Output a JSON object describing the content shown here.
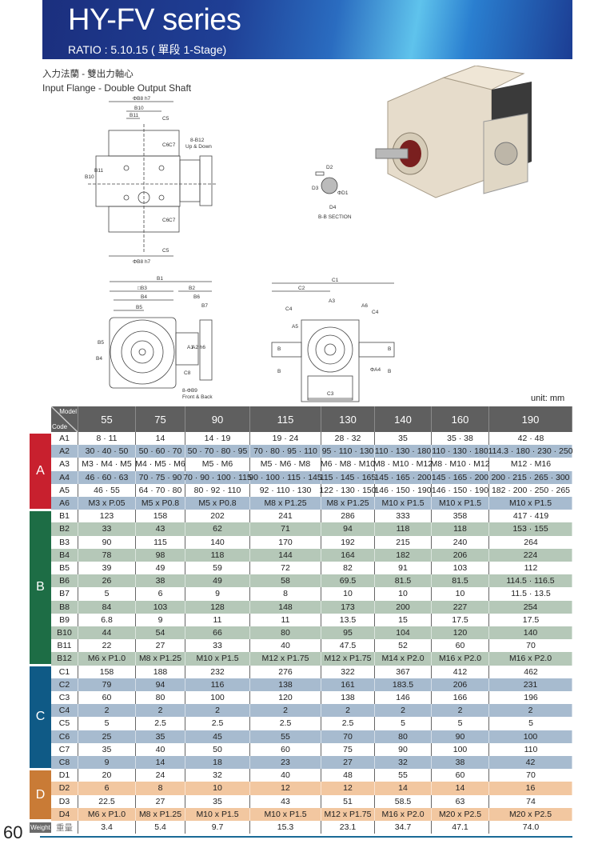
{
  "header": {
    "title": "HY-FV series",
    "ratio": "RATIO : 5.10.15 ( 單段 1-Stage)"
  },
  "subtitle_zh": "入力法蘭 - 雙出力軸心",
  "subtitle_en": "Input Flange - Double Output Shaft",
  "unit": "unit: mm",
  "page_number": "60",
  "drawings": {
    "top_view": [
      "ΦB8 h7",
      "B10",
      "B11",
      "C5",
      "C6",
      "C7",
      "8-B12",
      "Up & Down",
      "B10",
      "B11",
      "C6",
      "C7",
      "C5",
      "ΦB8 h7"
    ],
    "section": [
      "D2",
      "D3",
      "ΦD1",
      "D4",
      "B-B SECTION"
    ],
    "front_view": [
      "B1",
      "□B3",
      "B2",
      "B4",
      "B6",
      "B5",
      "B7",
      "B5",
      "B4",
      "A1",
      "A2 h6",
      "C8",
      "8-ΦB9",
      "Front & Back"
    ],
    "side_view": [
      "C1",
      "C2",
      "A3",
      "A6",
      "C4",
      "C4",
      "A5",
      "B",
      "B",
      "B",
      "B",
      "ΦA4",
      "C3"
    ]
  },
  "table": {
    "corner_model": "Model",
    "corner_code": "Code",
    "models": [
      "55",
      "75",
      "90",
      "115",
      "130",
      "140",
      "160",
      "190"
    ],
    "sections": [
      {
        "label": "A",
        "color": "#c8202e",
        "stripe": "#a7bbcf",
        "rows": [
          [
            "A1",
            "8 · 11",
            "14",
            "14 · 19",
            "19 · 24",
            "28 · 32",
            "35",
            "35 · 38",
            "42 · 48"
          ],
          [
            "A2",
            "30 · 40 · 50",
            "50 · 60 · 70",
            "50 · 70 · 80 · 95",
            "70 · 80 · 95 · 110",
            "95 · 110 · 130",
            "110 · 130 · 180",
            "110 · 130 · 180",
            "114.3 · 180 · 230 · 250"
          ],
          [
            "A3",
            "M3 · M4 · M5",
            "M4 · M5 · M6",
            "M5 · M6",
            "M5 · M6 · M8",
            "M6 · M8 · M10",
            "M8 · M10 · M12",
            "M8 · M10 · M12",
            "M12 · M16"
          ],
          [
            "A4",
            "46 · 60 · 63",
            "70 · 75 · 90",
            "70 · 90 · 100 · 115",
            "90 · 100 · 115 · 145",
            "115 · 145 · 165",
            "145 · 165 · 200",
            "145 · 165 · 200",
            "200 · 215 · 265 · 300"
          ],
          [
            "A5",
            "46 · 55",
            "64 · 70 · 80",
            "80 · 92 · 110",
            "92 · 110 · 130",
            "122 · 130 · 150",
            "146 · 150 · 190",
            "146 · 150 · 190",
            "182 · 200 · 250 · 265"
          ],
          [
            "A6",
            "M3 x P.05",
            "M5 x P0.8",
            "M5 x P0.8",
            "M8 x P1.25",
            "M8 x P1.25",
            "M10 x P1.5",
            "M10 x P1.5",
            "M10 x P1.5"
          ]
        ]
      },
      {
        "label": "B",
        "color": "#1d6d45",
        "stripe": "#b5c8b8",
        "rows": [
          [
            "B1",
            "123",
            "158",
            "202",
            "241",
            "286",
            "333",
            "358",
            "417 · 419"
          ],
          [
            "B2",
            "33",
            "43",
            "62",
            "71",
            "94",
            "118",
            "118",
            "153 · 155"
          ],
          [
            "B3",
            "90",
            "115",
            "140",
            "170",
            "192",
            "215",
            "240",
            "264"
          ],
          [
            "B4",
            "78",
            "98",
            "118",
            "144",
            "164",
            "182",
            "206",
            "224"
          ],
          [
            "B5",
            "39",
            "49",
            "59",
            "72",
            "82",
            "91",
            "103",
            "112"
          ],
          [
            "B6",
            "26",
            "38",
            "49",
            "58",
            "69.5",
            "81.5",
            "81.5",
            "114.5 · 116.5"
          ],
          [
            "B7",
            "5",
            "6",
            "9",
            "8",
            "10",
            "10",
            "10",
            "11.5 · 13.5"
          ],
          [
            "B8",
            "84",
            "103",
            "128",
            "148",
            "173",
            "200",
            "227",
            "254"
          ],
          [
            "B9",
            "6.8",
            "9",
            "11",
            "11",
            "13.5",
            "15",
            "17.5",
            "17.5"
          ],
          [
            "B10",
            "44",
            "54",
            "66",
            "80",
            "95",
            "104",
            "120",
            "140"
          ],
          [
            "B11",
            "22",
            "27",
            "33",
            "40",
            "47.5",
            "52",
            "60",
            "70"
          ],
          [
            "B12",
            "M6 x P1.0",
            "M8 x P1.25",
            "M10 x P1.5",
            "M12 x P1.75",
            "M12 x P1.75",
            "M14 x P2.0",
            "M16 x P2.0",
            "M16 x P2.0"
          ]
        ]
      },
      {
        "label": "C",
        "color": "#0f5a86",
        "stripe": "#a7bbcf",
        "rows": [
          [
            "C1",
            "158",
            "188",
            "232",
            "276",
            "322",
            "367",
            "412",
            "462"
          ],
          [
            "C2",
            "79",
            "94",
            "116",
            "138",
            "161",
            "183.5",
            "206",
            "231"
          ],
          [
            "C3",
            "60",
            "80",
            "100",
            "120",
            "138",
            "146",
            "166",
            "196"
          ],
          [
            "C4",
            "2",
            "2",
            "2",
            "2",
            "2",
            "2",
            "2",
            "2"
          ],
          [
            "C5",
            "5",
            "2.5",
            "2.5",
            "2.5",
            "2.5",
            "5",
            "5",
            "5"
          ],
          [
            "C6",
            "25",
            "35",
            "45",
            "55",
            "70",
            "80",
            "90",
            "100"
          ],
          [
            "C7",
            "35",
            "40",
            "50",
            "60",
            "75",
            "90",
            "100",
            "110"
          ],
          [
            "C8",
            "9",
            "14",
            "18",
            "23",
            "27",
            "32",
            "38",
            "42"
          ]
        ]
      },
      {
        "label": "D",
        "color": "#c97b36",
        "stripe": "#f2c7a0",
        "rows": [
          [
            "D1",
            "20",
            "24",
            "32",
            "40",
            "48",
            "55",
            "60",
            "70"
          ],
          [
            "D2",
            "6",
            "8",
            "10",
            "12",
            "12",
            "14",
            "14",
            "16"
          ],
          [
            "D3",
            "22.5",
            "27",
            "35",
            "43",
            "51",
            "58.5",
            "63",
            "74"
          ],
          [
            "D4",
            "M6 x P1.0",
            "M8 x P1.25",
            "M10 x P1.5",
            "M10 x P1.5",
            "M12 x P1.75",
            "M16 x P2.0",
            "M20 x P2.5",
            "M20 x P2.5"
          ]
        ]
      },
      {
        "label": "Weight",
        "color": "#6b6b6b",
        "stripe": "",
        "rows": [
          [
            "重量",
            "3.4",
            "5.4",
            "9.7",
            "15.3",
            "23.1",
            "34.7",
            "47.1",
            "74.0"
          ]
        ]
      }
    ]
  }
}
